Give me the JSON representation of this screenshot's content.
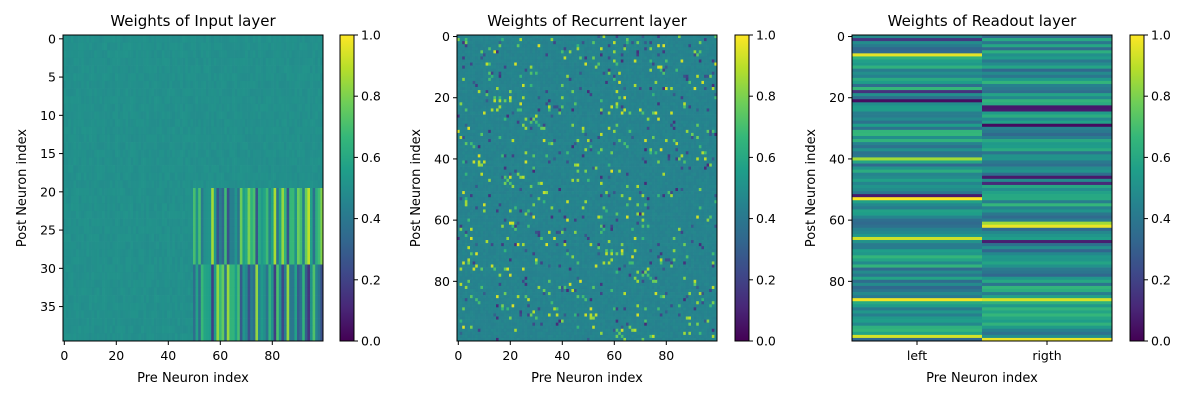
{
  "colormap": {
    "name": "viridis",
    "stops": [
      "#440154",
      "#482878",
      "#3e4989",
      "#31688e",
      "#26828e",
      "#1f9e89",
      "#35b779",
      "#6ece58",
      "#b5de2b",
      "#fde725"
    ]
  },
  "chart_data": [
    {
      "type": "heatmap",
      "title": "Weights of Input layer",
      "xlabel": "Pre Neuron index",
      "ylabel": "Post Neuron index",
      "n_cols": 100,
      "n_rows": 40,
      "xlim": [
        0,
        99
      ],
      "ylim": [
        39,
        0
      ],
      "xticks": [
        0,
        20,
        40,
        60,
        80
      ],
      "yticks": [
        0,
        5,
        10,
        15,
        20,
        25,
        30,
        35
      ],
      "xtick_labels": [
        "0",
        "20",
        "40",
        "60",
        "80"
      ],
      "ytick_labels": [
        "0",
        "5",
        "10",
        "15",
        "20",
        "25",
        "30",
        "35"
      ],
      "value_range": [
        0,
        1
      ],
      "background_value": 0.5,
      "blocks": [
        {
          "rows": [
            20,
            29
          ],
          "cols": [
            50,
            99
          ],
          "pattern": "striped"
        },
        {
          "rows": [
            30,
            39
          ],
          "cols": [
            50,
            99
          ],
          "pattern": "striped-inverse"
        }
      ],
      "colorbar": {
        "ticks": [
          0.0,
          0.2,
          0.4,
          0.6,
          0.8,
          1.0
        ],
        "labels": [
          "0.0",
          "0.2",
          "0.4",
          "0.6",
          "0.8",
          "1.0"
        ]
      }
    },
    {
      "type": "heatmap",
      "title": "Weights of Recurrent layer",
      "xlabel": "Pre Neuron index",
      "ylabel": "Post Neuron index",
      "n_cols": 100,
      "n_rows": 100,
      "xlim": [
        0,
        99
      ],
      "ylim": [
        99,
        0
      ],
      "xticks": [
        0,
        20,
        40,
        60,
        80
      ],
      "yticks": [
        0,
        20,
        40,
        60,
        80
      ],
      "xtick_labels": [
        "0",
        "20",
        "40",
        "60",
        "80"
      ],
      "ytick_labels": [
        "0",
        "20",
        "40",
        "60",
        "80"
      ],
      "value_range": [
        0,
        1
      ],
      "background_value": 0.45,
      "pattern": "sparse-random",
      "colorbar": {
        "ticks": [
          0.0,
          0.2,
          0.4,
          0.6,
          0.8,
          1.0
        ],
        "labels": [
          "0.0",
          "0.2",
          "0.4",
          "0.6",
          "0.8",
          "1.0"
        ]
      }
    },
    {
      "type": "heatmap",
      "title": "Weights of Readout layer",
      "xlabel": "Pre Neuron index",
      "ylabel": "Post Neuron index",
      "n_cols": 2,
      "n_rows": 100,
      "ylim": [
        99,
        0
      ],
      "categories": [
        "left",
        "rigth"
      ],
      "yticks": [
        0,
        20,
        40,
        60,
        80
      ],
      "ytick_labels": [
        "0",
        "20",
        "40",
        "60",
        "80"
      ],
      "value_range": [
        0,
        1
      ],
      "pattern": "row-bands",
      "colorbar": {
        "ticks": [
          0.0,
          0.2,
          0.4,
          0.6,
          0.8,
          1.0
        ],
        "labels": [
          "0.0",
          "0.2",
          "0.4",
          "0.6",
          "0.8",
          "1.0"
        ]
      }
    }
  ]
}
